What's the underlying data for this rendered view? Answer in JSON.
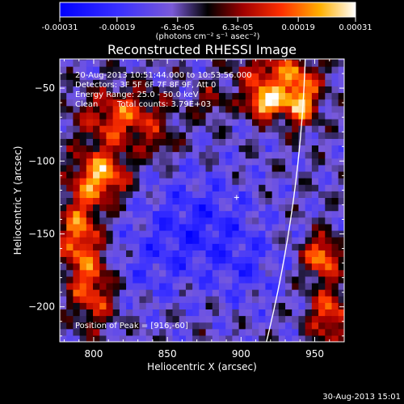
{
  "chart_data": {
    "type": "heatmap",
    "title": "Reconstructed RHESSI Image",
    "xlabel": "Heliocentric X (arcsec)",
    "ylabel": "Heliocentric Y (arcsec)",
    "xlim": [
      777,
      970
    ],
    "ylim": [
      -224,
      -30
    ],
    "x_ticks": [
      800,
      850,
      900,
      950
    ],
    "y_ticks": [
      -50,
      -100,
      -150,
      -200
    ],
    "colorbar": {
      "range": [
        -0.00031,
        0.00031
      ],
      "ticks": [
        -0.00031,
        -0.00019,
        -6.3e-05,
        6.3e-05,
        0.00019,
        0.00031
      ],
      "tick_labels": [
        "-0.00031",
        "-0.00019",
        "-6.3e-05",
        "6.3e-05",
        "0.00019",
        "0.00031"
      ],
      "unit_label": "(photons cm⁻² s⁻¹ asec⁻²)"
    },
    "annotations": [
      "20-Aug-2013 10:51:44.000 to 10:53:56.000",
      "Detectors: 3F 5F 6F 7F 8F 9F, Att 0",
      "Energy Range: 25.0 - 50.0 keV",
      "Clean",
      "Total counts: 3.79E+03"
    ],
    "peak_label": "Position of Peak = [916,-60]",
    "peak": [
      916,
      -60
    ],
    "footer_date": "30-Aug-2013 15:01",
    "colors": {
      "negative_low": "#0000ff",
      "negative_mid": "#6a3ed8",
      "zero": "#000000",
      "positive_mid": "#e02000",
      "positive_high": "#ffffff"
    }
  }
}
